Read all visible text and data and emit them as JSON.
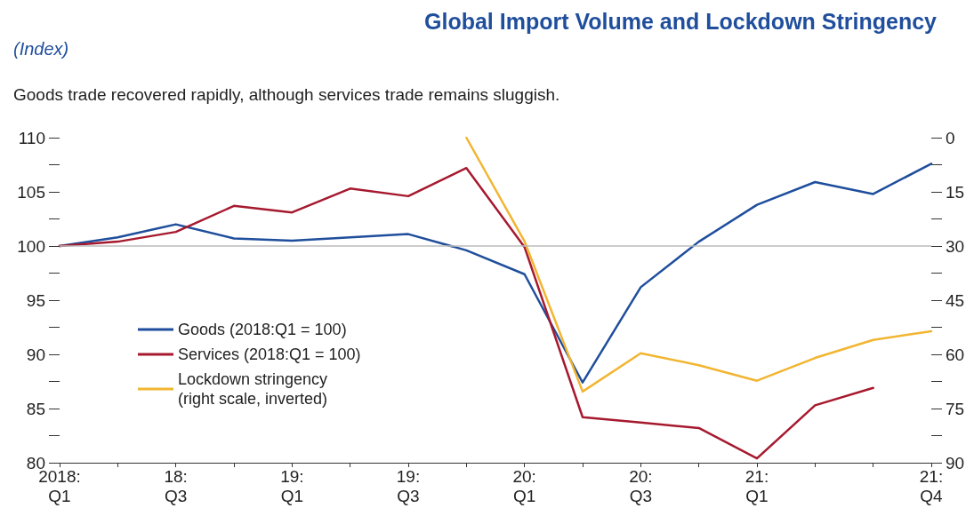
{
  "chart_data": {
    "type": "line",
    "title": "Global Import Volume and Lockdown Stringency",
    "subtitle": "Goods trade recovered rapidly, although services trade remains sluggish.",
    "ylabel": "(Index)",
    "categories": [
      "2018:\nQ1",
      null,
      "18:\nQ3",
      null,
      "19:\nQ1",
      null,
      "19:\nQ3",
      null,
      "20:\nQ1",
      null,
      "20:\nQ3",
      null,
      "21:\nQ1",
      null,
      null,
      "21:\nQ4"
    ],
    "series": [
      {
        "name": "Goods (2018:Q1 = 100)",
        "color": "#1f4e9c",
        "values": [
          100,
          100.8,
          102.0,
          100.7,
          100.5,
          100.8,
          101.1,
          99.6,
          97.4,
          87.4,
          96.2,
          100.4,
          103.8,
          105.9,
          104.8,
          107.6
        ]
      },
      {
        "name": "Services (2018:Q1 = 100)",
        "color": "#a6192e",
        "values": [
          100,
          100.4,
          101.3,
          103.7,
          103.1,
          105.3,
          104.6,
          107.2,
          99.9,
          84.2,
          83.7,
          83.2,
          80.4,
          85.3,
          86.9,
          null
        ]
      },
      {
        "name": "Lockdown stringency\n(right scale, inverted)",
        "color": "#f2b531",
        "axis": "y2",
        "values": [
          null,
          null,
          null,
          null,
          null,
          null,
          null,
          0,
          28.7,
          70.3,
          59.7,
          63,
          67.3,
          61,
          56,
          53.6
        ]
      }
    ],
    "ylim": [
      80,
      110
    ],
    "yticks": [
      80,
      {
        "value": 82.5,
        "label": null
      },
      85,
      {
        "value": 87.5,
        "label": null
      },
      90,
      {
        "value": 92.5,
        "label": null
      },
      95,
      {
        "value": 97.5,
        "label": null
      },
      100,
      {
        "value": 102.5,
        "label": null
      },
      105,
      {
        "value": 107.5,
        "label": null
      },
      110
    ],
    "y2lim": [
      90,
      0
    ],
    "y2ticks": [
      0,
      {
        "value": 7.5,
        "label": null
      },
      15,
      {
        "value": 22.5,
        "label": null
      },
      30,
      {
        "value": 37.5,
        "label": null
      },
      45,
      {
        "value": 52.5,
        "label": null
      },
      60,
      {
        "value": 67.5,
        "label": null
      },
      75,
      {
        "value": 82.5,
        "label": null
      },
      90
    ],
    "ref_lines": [
      {
        "axis": "y",
        "value": 100,
        "color": "#bbbbbb"
      }
    ],
    "grid": false,
    "legend": "left",
    "marker": "none",
    "line_style": "solid"
  }
}
